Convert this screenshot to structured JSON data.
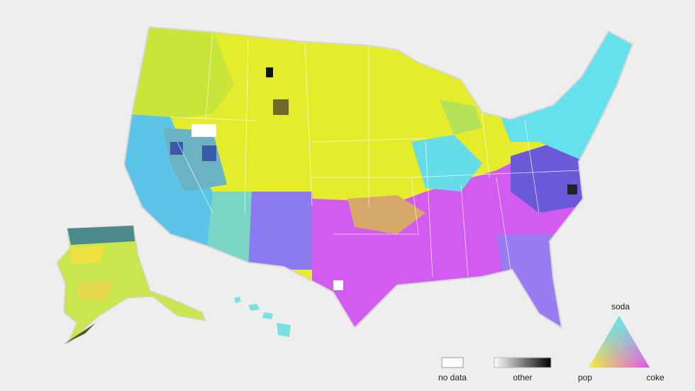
{
  "legend": {
    "no_data": "no data",
    "other": "other",
    "triangle": {
      "top": "soda",
      "left": "pop",
      "right": "coke"
    }
  }
}
